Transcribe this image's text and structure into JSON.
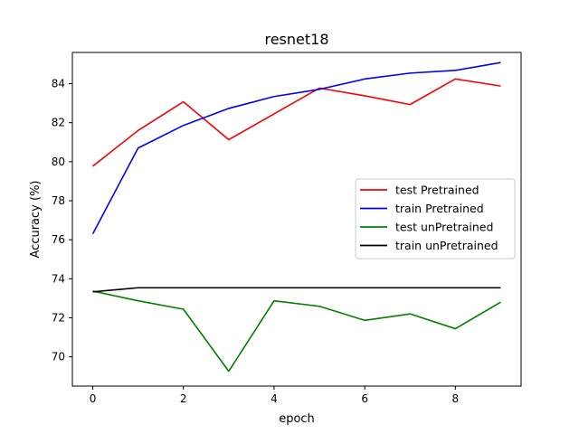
{
  "chart_data": {
    "type": "line",
    "title": "resnet18",
    "xlabel": "epoch",
    "ylabel": "Accuracy (%)",
    "x": [
      0,
      1,
      2,
      3,
      4,
      5,
      6,
      7,
      8,
      9
    ],
    "xlim": [
      -0.45,
      9.45
    ],
    "ylim": [
      68.5,
      85.6
    ],
    "xticks": [
      0,
      2,
      4,
      6,
      8
    ],
    "yticks": [
      70,
      72,
      74,
      76,
      78,
      80,
      82,
      84
    ],
    "grid": false,
    "legend_position": "center-right",
    "series": [
      {
        "name": "test Pretrained",
        "color": "#ff0000",
        "values": [
          79.77,
          81.6,
          83.07,
          81.13,
          82.45,
          83.77,
          83.38,
          82.93,
          84.24,
          83.88
        ]
      },
      {
        "name": "train Pretrained",
        "color": "#0000ff",
        "values": [
          76.3,
          80.7,
          81.86,
          82.73,
          83.34,
          83.71,
          84.24,
          84.54,
          84.68,
          85.08
        ]
      },
      {
        "name": "test unPretrained",
        "color": "#008000",
        "values": [
          73.37,
          72.87,
          72.44,
          69.26,
          72.87,
          72.59,
          71.87,
          72.2,
          71.44,
          72.8
        ]
      },
      {
        "name": "train unPretrained",
        "color": "#000000",
        "values": [
          73.33,
          73.54,
          73.54,
          73.54,
          73.54,
          73.54,
          73.54,
          73.54,
          73.54,
          73.54
        ]
      }
    ]
  }
}
